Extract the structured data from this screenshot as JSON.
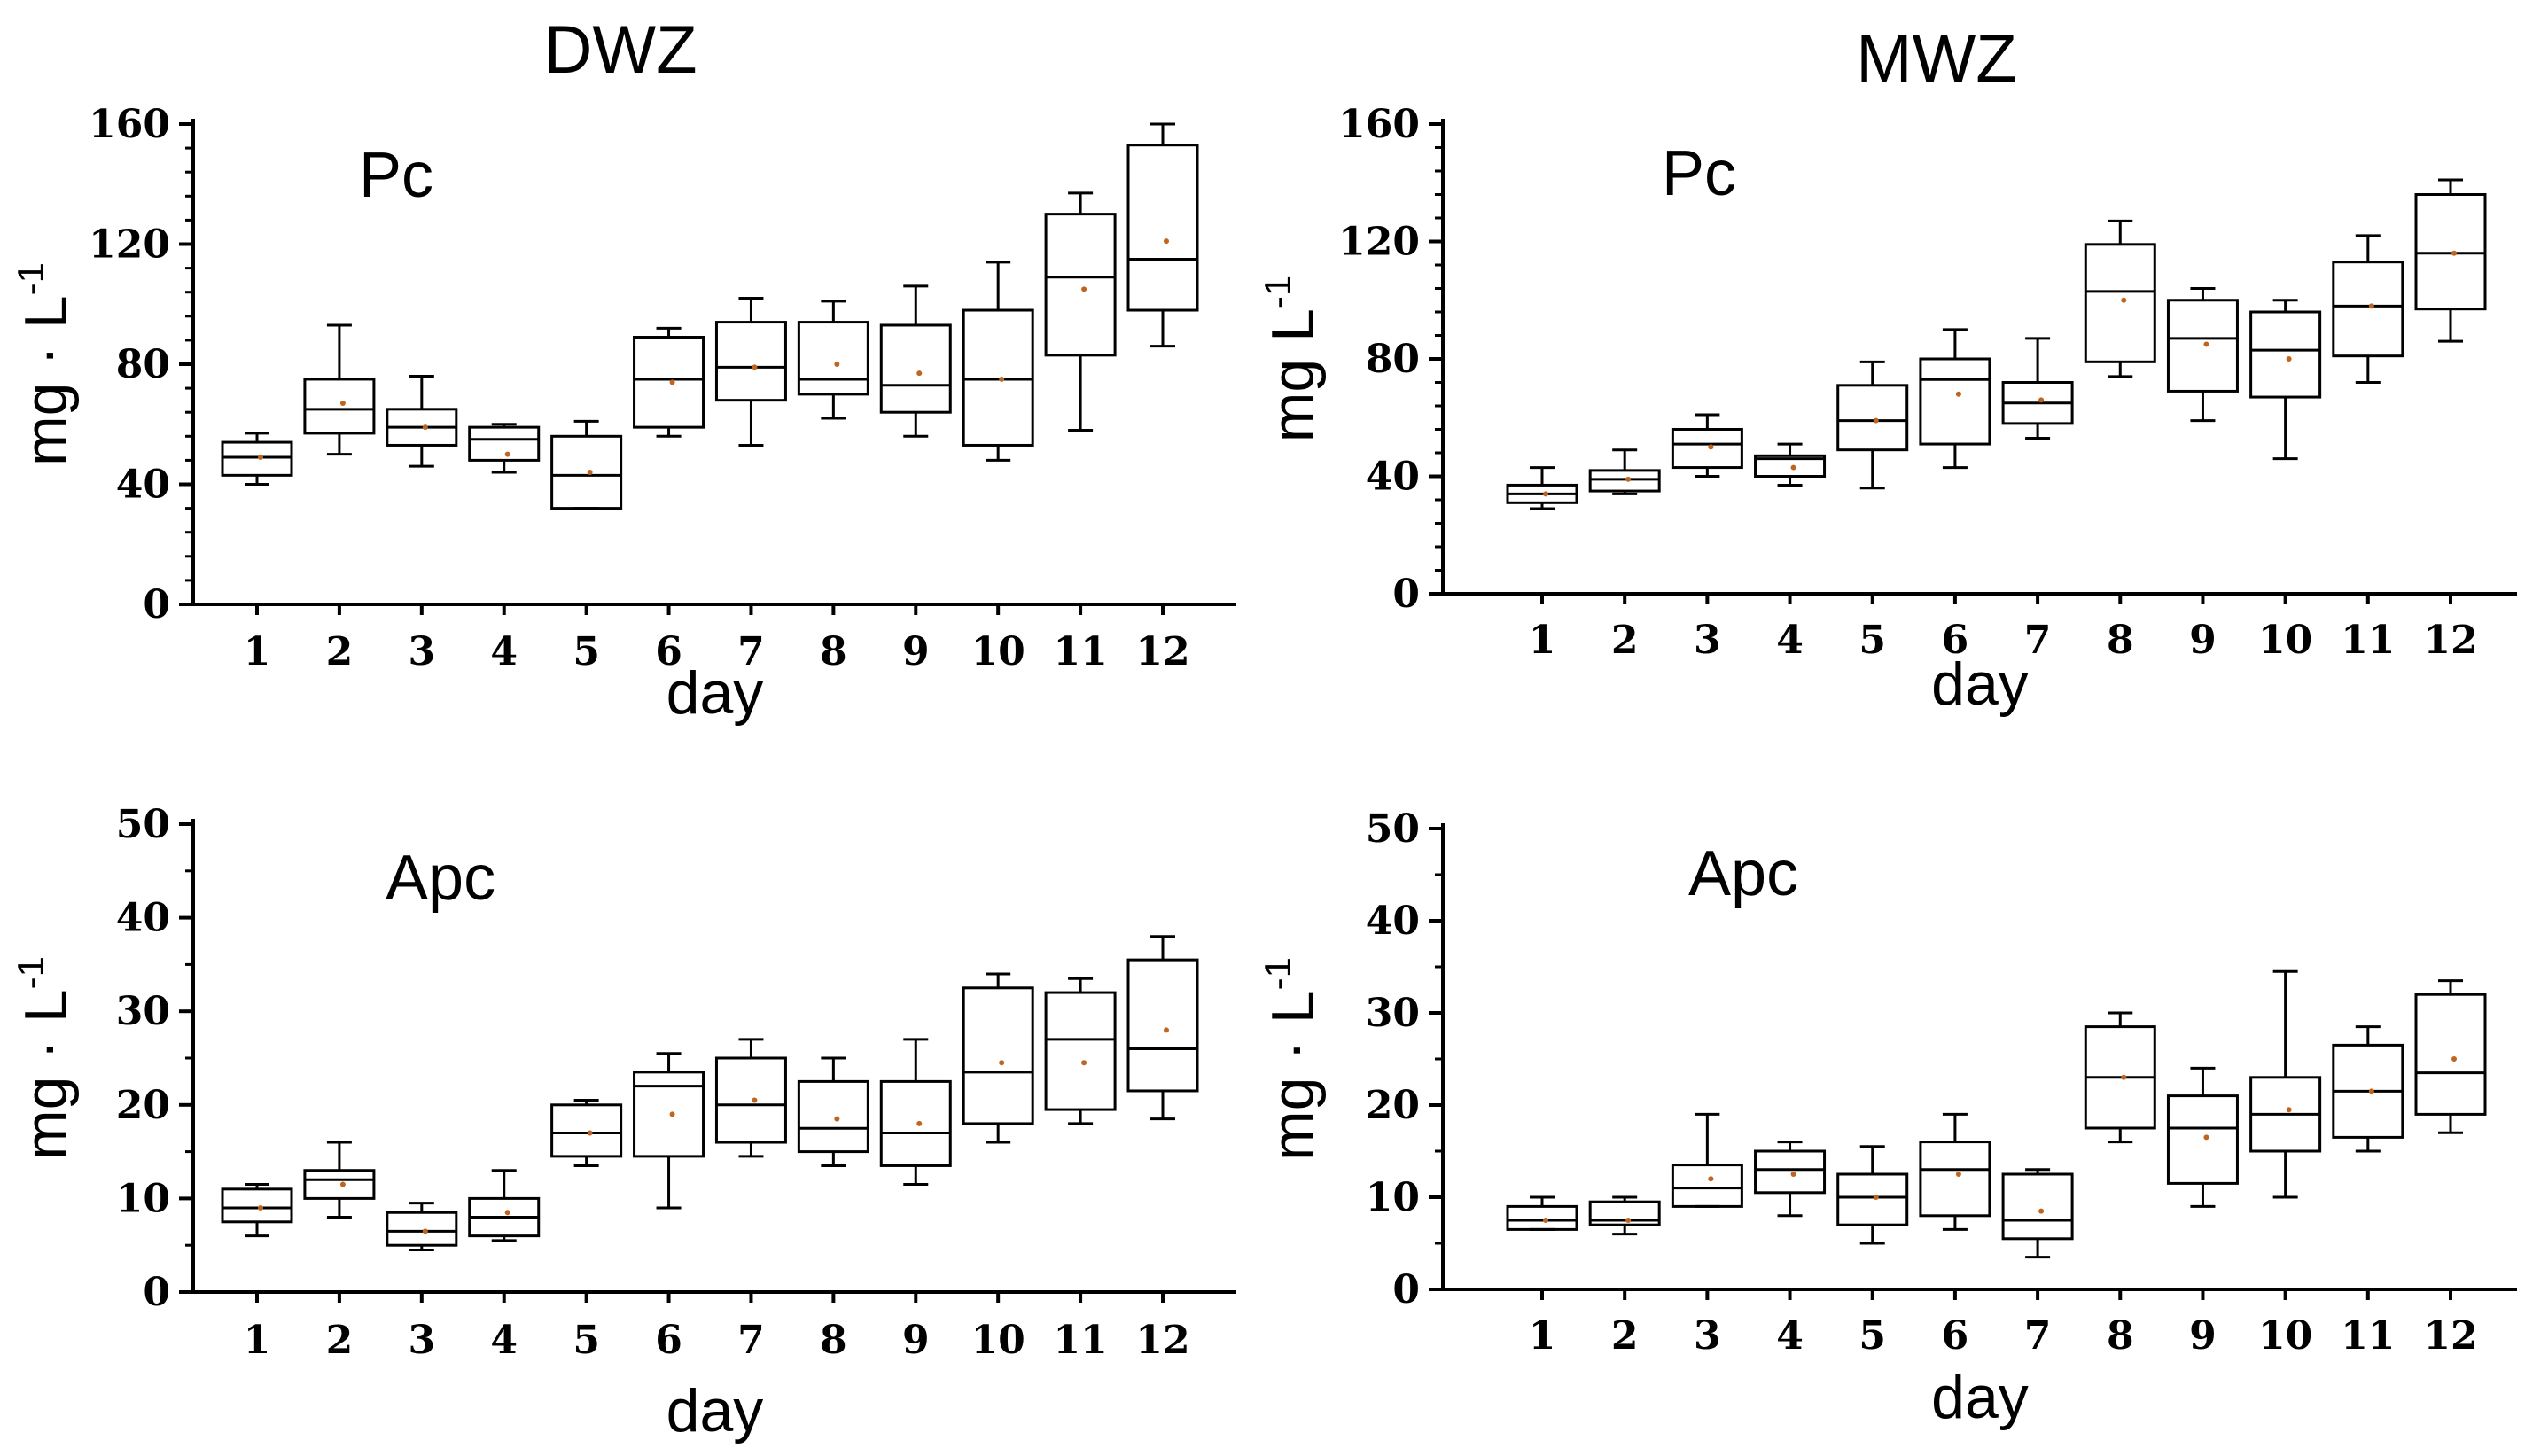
{
  "titles": {
    "left": "DWZ",
    "right": "MWZ"
  },
  "chart_data": [
    {
      "type": "box",
      "id": "dwz-pc",
      "column_title": "DWZ",
      "panel_label": "Pc",
      "xlabel": "day",
      "ylabel": "mg · L",
      "ylabel_sup": "-1",
      "ylim": [
        0,
        160
      ],
      "yticks": [
        0,
        40,
        80,
        120,
        160
      ],
      "categories": [
        "1",
        "2",
        "3",
        "4",
        "5",
        "6",
        "7",
        "8",
        "9",
        "10",
        "11",
        "12"
      ],
      "boxes": [
        {
          "min": 40,
          "q1": 43,
          "median": 49,
          "q3": 54,
          "max": 57,
          "mean": 49
        },
        {
          "min": 50,
          "q1": 57,
          "median": 65,
          "q3": 75,
          "max": 93,
          "mean": 67
        },
        {
          "min": 46,
          "q1": 53,
          "median": 59,
          "q3": 65,
          "max": 76,
          "mean": 59
        },
        {
          "min": 44,
          "q1": 48,
          "median": 55,
          "q3": 59,
          "max": 60,
          "mean": 50
        },
        {
          "min": 32,
          "q1": 32,
          "median": 43,
          "q3": 56,
          "max": 61,
          "mean": 44
        },
        {
          "min": 56,
          "q1": 59,
          "median": 75,
          "q3": 89,
          "max": 92,
          "mean": 74
        },
        {
          "min": 53,
          "q1": 68,
          "median": 79,
          "q3": 94,
          "max": 102,
          "mean": 79
        },
        {
          "min": 62,
          "q1": 70,
          "median": 75,
          "q3": 94,
          "max": 101,
          "mean": 80
        },
        {
          "min": 56,
          "q1": 64,
          "median": 73,
          "q3": 93,
          "max": 106,
          "mean": 77
        },
        {
          "min": 48,
          "q1": 53,
          "median": 75,
          "q3": 98,
          "max": 114,
          "mean": 75
        },
        {
          "min": 58,
          "q1": 83,
          "median": 109,
          "q3": 130,
          "max": 137,
          "mean": 105
        },
        {
          "min": 86,
          "q1": 98,
          "median": 115,
          "q3": 153,
          "max": 160,
          "mean": 121
        }
      ]
    },
    {
      "type": "box",
      "id": "mwz-pc",
      "column_title": "MWZ",
      "panel_label": "Pc",
      "xlabel": "day",
      "ylabel": "mg L",
      "ylabel_sup": "-1",
      "ylim": [
        0,
        160
      ],
      "yticks": [
        0,
        40,
        80,
        120,
        160
      ],
      "categories": [
        "1",
        "2",
        "3",
        "4",
        "5",
        "6",
        "7",
        "8",
        "9",
        "10",
        "11",
        "12"
      ],
      "boxes": [
        {
          "min": 29,
          "q1": 31,
          "median": 34,
          "q3": 37,
          "max": 43,
          "mean": 34
        },
        {
          "min": 34,
          "q1": 35,
          "median": 39,
          "q3": 42,
          "max": 49,
          "mean": 39
        },
        {
          "min": 40,
          "q1": 43,
          "median": 51,
          "q3": 56,
          "max": 61,
          "mean": 50
        },
        {
          "min": 37,
          "q1": 40,
          "median": 46,
          "q3": 47,
          "max": 51,
          "mean": 43
        },
        {
          "min": 36,
          "q1": 49,
          "median": 59,
          "q3": 71,
          "max": 79,
          "mean": 59
        },
        {
          "min": 43,
          "q1": 51,
          "median": 73,
          "q3": 80,
          "max": 90,
          "mean": 68
        },
        {
          "min": 53,
          "q1": 58,
          "median": 65,
          "q3": 72,
          "max": 87,
          "mean": 66
        },
        {
          "min": 74,
          "q1": 79,
          "median": 103,
          "q3": 119,
          "max": 127,
          "mean": 100
        },
        {
          "min": 59,
          "q1": 69,
          "median": 87,
          "q3": 100,
          "max": 104,
          "mean": 85
        },
        {
          "min": 46,
          "q1": 67,
          "median": 83,
          "q3": 96,
          "max": 100,
          "mean": 80
        },
        {
          "min": 72,
          "q1": 81,
          "median": 98,
          "q3": 113,
          "max": 122,
          "mean": 98
        },
        {
          "min": 86,
          "q1": 97,
          "median": 116,
          "q3": 136,
          "max": 141,
          "mean": 116
        }
      ]
    },
    {
      "type": "box",
      "id": "dwz-apc",
      "column_title": "DWZ",
      "panel_label": "Apc",
      "xlabel": "day",
      "ylabel": "mg · L",
      "ylabel_sup": "-1",
      "ylim": [
        0,
        50
      ],
      "yticks": [
        0,
        10,
        20,
        30,
        40,
        50
      ],
      "categories": [
        "1",
        "2",
        "3",
        "4",
        "5",
        "6",
        "7",
        "8",
        "9",
        "10",
        "11",
        "12"
      ],
      "boxes": [
        {
          "min": 6,
          "q1": 7.5,
          "median": 9,
          "q3": 11,
          "max": 11.5,
          "mean": 9
        },
        {
          "min": 8,
          "q1": 10,
          "median": 12,
          "q3": 13,
          "max": 16,
          "mean": 11.5
        },
        {
          "min": 4.5,
          "q1": 5,
          "median": 6.5,
          "q3": 8.5,
          "max": 9.5,
          "mean": 6.5
        },
        {
          "min": 5.5,
          "q1": 6,
          "median": 8,
          "q3": 10,
          "max": 13,
          "mean": 8.5
        },
        {
          "min": 13.5,
          "q1": 14.5,
          "median": 17,
          "q3": 20,
          "max": 20.5,
          "mean": 17
        },
        {
          "min": 9,
          "q1": 14.5,
          "median": 22,
          "q3": 23.5,
          "max": 25.5,
          "mean": 19
        },
        {
          "min": 14.5,
          "q1": 16,
          "median": 20,
          "q3": 25,
          "max": 27,
          "mean": 20.5
        },
        {
          "min": 13.5,
          "q1": 15,
          "median": 17.5,
          "q3": 22.5,
          "max": 25,
          "mean": 18.5
        },
        {
          "min": 11.5,
          "q1": 13.5,
          "median": 17,
          "q3": 22.5,
          "max": 27,
          "mean": 18
        },
        {
          "min": 16,
          "q1": 18,
          "median": 23.5,
          "q3": 32.5,
          "max": 34,
          "mean": 24.5
        },
        {
          "min": 18,
          "q1": 19.5,
          "median": 27,
          "q3": 32,
          "max": 33.5,
          "mean": 24.5
        },
        {
          "min": 18.5,
          "q1": 21.5,
          "median": 26,
          "q3": 35.5,
          "max": 38,
          "mean": 28
        }
      ]
    },
    {
      "type": "box",
      "id": "mwz-apc",
      "column_title": "MWZ",
      "panel_label": "Apc",
      "xlabel": "day",
      "ylabel": "mg · L",
      "ylabel_sup": "-1",
      "ylim": [
        0,
        50
      ],
      "yticks": [
        0,
        10,
        20,
        30,
        40,
        50
      ],
      "categories": [
        "1",
        "2",
        "3",
        "4",
        "5",
        "6",
        "7",
        "8",
        "9",
        "10",
        "11",
        "12"
      ],
      "boxes": [
        {
          "min": 6.5,
          "q1": 6.5,
          "median": 7.5,
          "q3": 9,
          "max": 10,
          "mean": 7.5
        },
        {
          "min": 6,
          "q1": 7,
          "median": 7.5,
          "q3": 9.5,
          "max": 10,
          "mean": 7.5
        },
        {
          "min": 9,
          "q1": 9,
          "median": 11,
          "q3": 13.5,
          "max": 19,
          "mean": 12
        },
        {
          "min": 8,
          "q1": 10.5,
          "median": 13,
          "q3": 15,
          "max": 16,
          "mean": 12.5
        },
        {
          "min": 5,
          "q1": 7,
          "median": 10,
          "q3": 12.5,
          "max": 15.5,
          "mean": 10
        },
        {
          "min": 6.5,
          "q1": 8,
          "median": 13,
          "q3": 16,
          "max": 19,
          "mean": 12.5
        },
        {
          "min": 3.5,
          "q1": 5.5,
          "median": 7.5,
          "q3": 12.5,
          "max": 13,
          "mean": 8.5
        },
        {
          "min": 16,
          "q1": 17.5,
          "median": 23,
          "q3": 28.5,
          "max": 30,
          "mean": 23
        },
        {
          "min": 9,
          "q1": 11.5,
          "median": 17.5,
          "q3": 21,
          "max": 24,
          "mean": 16.5
        },
        {
          "min": 10,
          "q1": 15,
          "median": 19,
          "q3": 23,
          "max": 34.5,
          "mean": 19.5
        },
        {
          "min": 15,
          "q1": 16.5,
          "median": 21.5,
          "q3": 26.5,
          "max": 28.5,
          "mean": 21.5
        },
        {
          "min": 17,
          "q1": 19,
          "median": 23.5,
          "q3": 32,
          "max": 33.5,
          "mean": 25
        }
      ]
    }
  ],
  "colors": {
    "axis": "#000000",
    "box": "#000000",
    "mean": "#c0651f",
    "background": "#ffffff"
  }
}
